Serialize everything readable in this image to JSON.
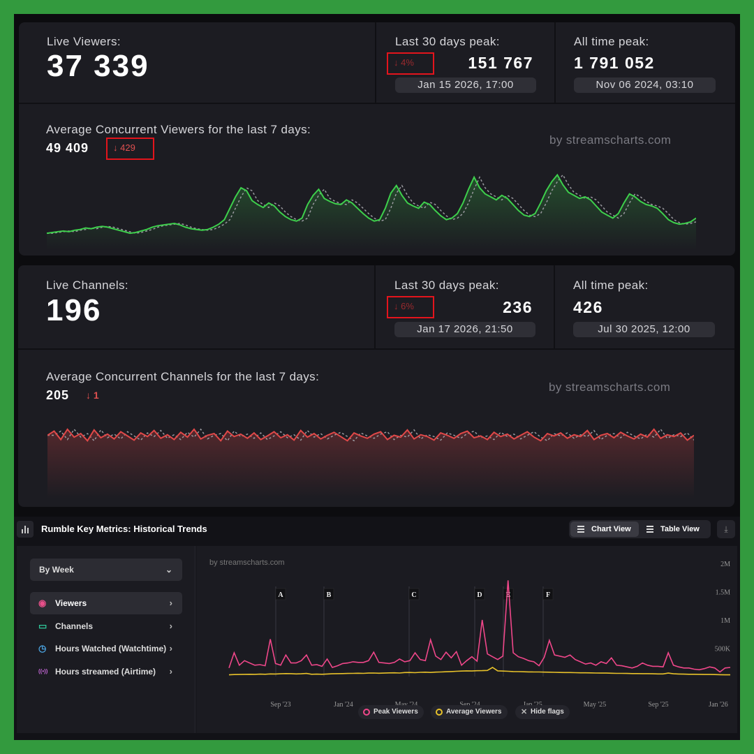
{
  "viewers_panel": {
    "live_label": "Live Viewers:",
    "live_value": "37 339",
    "peak30_label": "Last 30 days peak:",
    "peak30_change": "↓ 4%",
    "peak30_value": "151 767",
    "peak30_date": "Jan 15 2026, 17:00",
    "alltime_label": "All time peak:",
    "alltime_value": "1 791 052",
    "alltime_date": "Nov 06 2024, 03:10",
    "avg_label": "Average Concurrent Viewers for the last 7 days:",
    "avg_value": "49 409",
    "avg_change": "↓ 429",
    "brand": "by streamscharts.com",
    "line_color": "#3ecf4c"
  },
  "channels_panel": {
    "live_label": "Live Channels:",
    "live_value": "196",
    "peak30_label": "Last 30 days peak:",
    "peak30_change": "↓ 6%",
    "peak30_value": "236",
    "peak30_date": "Jan 17 2026, 21:50",
    "alltime_label": "All time peak:",
    "alltime_value": "426",
    "alltime_date": "Jul 30 2025, 12:00",
    "avg_label": "Average Concurrent Channels for the last 7 days:",
    "avg_value": "205",
    "avg_change": "↓ 1",
    "brand": "by streamscharts.com",
    "line_color": "#e04848"
  },
  "historical": {
    "title": "Rumble Key Metrics: Historical Trends",
    "chart_view_label": "Chart View",
    "table_view_label": "Table View",
    "period_select": "By Week",
    "menu": [
      {
        "label": "Viewers",
        "icon": "eye-icon",
        "glyph": "◉",
        "color": "#e8508a",
        "active": true
      },
      {
        "label": "Channels",
        "icon": "video-icon",
        "glyph": "▭",
        "color": "#2fc79a",
        "active": false
      },
      {
        "label": "Hours Watched (Watchtime)",
        "icon": "clock-icon",
        "glyph": "◷",
        "color": "#4aa3e0",
        "active": false
      },
      {
        "label": "Hours streamed (Airtime)",
        "icon": "broadcast-icon",
        "glyph": "((•))",
        "color": "#c667d8",
        "active": false
      }
    ],
    "brand": "by streamscharts.com",
    "legend": {
      "peak_label": "Peak Viewers",
      "avg_label": "Average Viewers",
      "hide_flags_label": "Hide flags"
    },
    "colors": {
      "peak": "#f0478a",
      "avg": "#e8c22a"
    }
  },
  "chart_data": [
    {
      "type": "line",
      "title": "Average Concurrent Viewers for the last 7 days:",
      "series": [
        {
          "values": [
            22000,
            23000,
            24000,
            25000,
            24000,
            26000,
            27000,
            29000,
            28000,
            30000,
            31000,
            30000,
            28000,
            26000,
            24000,
            22000,
            23000,
            25000,
            27000,
            30000,
            32000,
            33000,
            34000,
            35000,
            33000,
            30000,
            28000,
            27000,
            26000,
            27000,
            30000,
            34000,
            40000,
            55000,
            70000,
            82000,
            78000,
            65000,
            60000,
            56000,
            62000,
            58000,
            50000,
            44000,
            40000,
            38000,
            42000,
            60000,
            72000,
            80000,
            68000,
            64000,
            61000,
            60000,
            66000,
            62000,
            55000,
            48000,
            42000,
            38000,
            40000,
            55000,
            75000,
            85000,
            72000,
            62000,
            58000,
            55000,
            63000,
            60000,
            52000,
            45000,
            40000,
            42000,
            48000,
            62000,
            80000,
            96000,
            82000,
            74000,
            70000,
            66000,
            72000,
            68000,
            60000,
            52000,
            46000,
            44000,
            48000,
            62000,
            78000,
            90000,
            99000,
            86000,
            76000,
            72000,
            68000,
            70000,
            66000,
            58000,
            50000,
            46000,
            42000,
            48000,
            62000,
            74000,
            70000,
            64000,
            60000,
            58000,
            55000,
            48000,
            40000,
            36000,
            34000,
            35000,
            37000,
            42000
          ]
        }
      ]
    },
    {
      "type": "line",
      "title": "Average Concurrent Channels for the last 7 days:",
      "series": [
        {
          "values": [
            205,
            212,
            198,
            215,
            202,
            208,
            196,
            214,
            201,
            207,
            199,
            211,
            204,
            197,
            209,
            203,
            213,
            200,
            206,
            198,
            210,
            202,
            215,
            199,
            205,
            208,
            196,
            212,
            203,
            207,
            200,
            209,
            198,
            204,
            211,
            201,
            206,
            197,
            213,
            202,
            208,
            199,
            205,
            210,
            203,
            196,
            209,
            204,
            200,
            207,
            211,
            198,
            205,
            202,
            214,
            199,
            206,
            203,
            197,
            209,
            205,
            200,
            208,
            212,
            201,
            204,
            198,
            210,
            203,
            207,
            199,
            205,
            211,
            202,
            196,
            208,
            204,
            209,
            200,
            206,
            203,
            213,
            198,
            205,
            208,
            201,
            210,
            204,
            199,
            207,
            202,
            215,
            200,
            206,
            203,
            209,
            197,
            205
          ]
        }
      ]
    },
    {
      "type": "line",
      "title": "",
      "x_ticks": [
        "Sep '23",
        "Jan '24",
        "May '24",
        "Sep '24",
        "Jan '25",
        "May '25",
        "Sep '25",
        "Jan '26"
      ],
      "y_ticks": [
        "2M",
        "1.5M",
        "1M",
        "500K"
      ],
      "ylim": [
        0,
        2000000
      ],
      "flags": [
        "A",
        "B",
        "C",
        "D",
        "E",
        "F"
      ],
      "series": [
        {
          "name": "Peak Viewers",
          "values": [
            150000,
            420000,
            200000,
            280000,
            240000,
            200000,
            210000,
            190000,
            660000,
            230000,
            200000,
            380000,
            240000,
            240000,
            280000,
            380000,
            200000,
            210000,
            180000,
            310000,
            160000,
            190000,
            230000,
            240000,
            260000,
            250000,
            250000,
            280000,
            430000,
            250000,
            240000,
            230000,
            250000,
            310000,
            260000,
            280000,
            420000,
            300000,
            280000,
            650000,
            360000,
            300000,
            430000,
            330000,
            440000,
            200000,
            280000,
            350000,
            270000,
            1000000,
            400000,
            350000,
            300000,
            360000,
            1700000,
            420000,
            350000,
            320000,
            280000,
            260000,
            190000,
            340000,
            640000,
            380000,
            360000,
            340000,
            380000,
            300000,
            260000,
            220000,
            240000,
            200000,
            260000,
            230000,
            330000,
            200000,
            190000,
            170000,
            150000,
            180000,
            240000,
            200000,
            180000,
            180000,
            170000,
            420000,
            200000,
            170000,
            150000,
            150000,
            130000,
            120000,
            140000,
            170000,
            150000,
            80000,
            150000,
            160000
          ]
        },
        {
          "name": "Average Viewers",
          "values": [
            30000,
            34000,
            36000,
            38000,
            40000,
            38000,
            42000,
            40000,
            46000,
            44000,
            48000,
            52000,
            50000,
            46000,
            48000,
            54000,
            40000,
            42000,
            40000,
            44000,
            48000,
            50000,
            52000,
            54000,
            56000,
            58000,
            56000,
            60000,
            62000,
            58000,
            60000,
            64000,
            66000,
            62000,
            70000,
            72000,
            68000,
            74000,
            76000,
            72000,
            78000,
            80000,
            84000,
            88000,
            92000,
            96000,
            100000,
            98000,
            102000,
            104000,
            108000,
            160000,
            100000,
            96000,
            92000,
            88000,
            86000,
            84000,
            82000,
            80000,
            80000,
            78000,
            76000,
            74000,
            72000,
            70000,
            70000,
            68000,
            66000,
            66000,
            64000,
            62000,
            60000,
            60000,
            58000,
            56000,
            56000,
            54000,
            52000,
            52000,
            50000,
            50000,
            48000,
            46000,
            46000,
            60000,
            48000,
            44000,
            42000,
            40000,
            40000,
            38000,
            36000,
            36000,
            34000,
            32000,
            30000,
            30000
          ]
        }
      ]
    }
  ]
}
